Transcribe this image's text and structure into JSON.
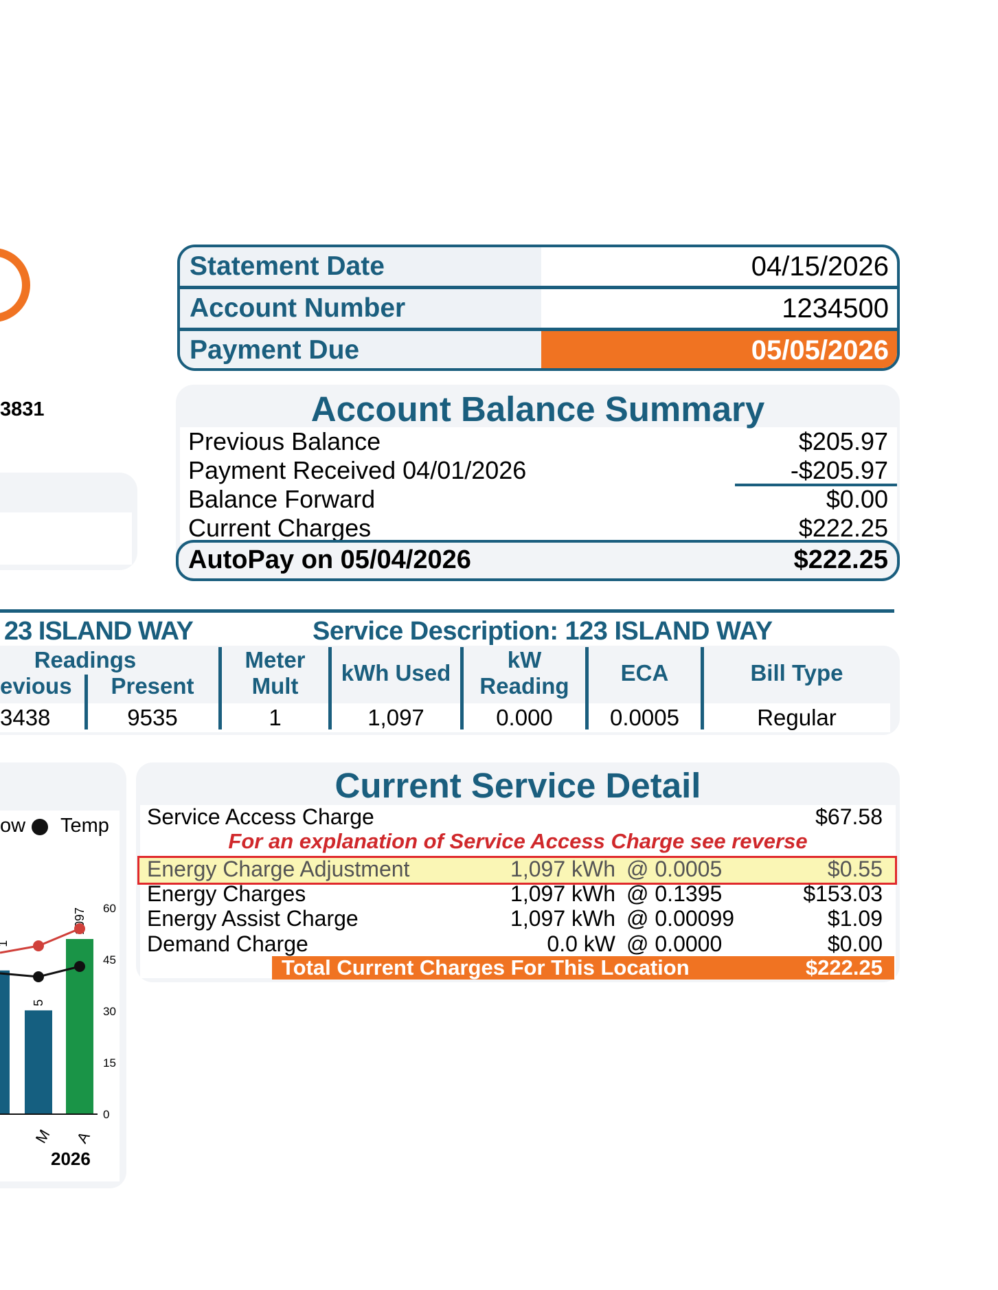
{
  "account": {
    "statement_date_label": "Statement Date",
    "statement_date": "04/15/2026",
    "account_number_label": "Account Number",
    "account_number": "1234500",
    "payment_due_label": "Payment Due",
    "payment_due": "05/05/2026",
    "partial_id": "3831"
  },
  "colors": {
    "teal": "#1a5e7e",
    "orange": "#f07322",
    "green": "#1a9447",
    "red": "#d0403a"
  },
  "balance": {
    "title": "Account Balance Summary",
    "rows": [
      {
        "label": "Previous Balance",
        "value": "$205.97"
      },
      {
        "label": "Payment Received 04/01/2026",
        "value": "-$205.97"
      },
      {
        "label": "Balance Forward",
        "value": "$0.00"
      },
      {
        "label": "Current Charges",
        "value": "$222.25"
      }
    ],
    "autopay_label": "AutoPay on 05/04/2026",
    "autopay_value": "$222.25"
  },
  "service": {
    "left_address": "23 ISLAND WAY",
    "description": "Service Description: 123 ISLAND WAY",
    "headers": {
      "readings": "Readings",
      "previous": "evious",
      "present": "Present",
      "meter_mult_1": "Meter",
      "meter_mult_2": "Mult",
      "kwh_used": "kWh Used",
      "kw_reading_1": "kW",
      "kw_reading_2": "Reading",
      "eca": "ECA",
      "bill_type": "Bill Type"
    },
    "values": {
      "previous": "3438",
      "present": "9535",
      "meter_mult": "1",
      "kwh_used": "1,097",
      "kw_reading": "0.000",
      "eca": "0.0005",
      "bill_type": "Regular"
    }
  },
  "chart": {
    "legend_low": "ow",
    "legend_temp": "Temp",
    "year_label": "2026",
    "bar_label_m": "5",
    "bar_label_a": "1097",
    "bar_label_prev": "1"
  },
  "chart_data": {
    "type": "bar",
    "categories": [
      "M",
      "A"
    ],
    "series": [
      {
        "values": [
          650,
          1097
        ]
      }
    ],
    "lines": [
      {
        "name": "Low",
        "values": [
          49,
          54
        ]
      },
      {
        "name": "Temp",
        "values": [
          40,
          43
        ]
      }
    ],
    "right_axis_ticks": [
      "0",
      "15",
      "30",
      "45",
      "60"
    ],
    "ylim": [
      0,
      60
    ]
  },
  "detail": {
    "title": "Current Service Detail",
    "service_access_label": "Service Access Charge",
    "service_access_value": "$67.58",
    "note": "For an explanation of Service Access Charge see reverse",
    "rows": [
      {
        "label": "Energy Charge Adjustment",
        "qty": "1,097 kWh",
        "rate": "@ 0.0005",
        "value": "$0.55"
      },
      {
        "label": "Energy Charges",
        "qty": "1,097 kWh",
        "rate": "@ 0.1395",
        "value": "$153.03"
      },
      {
        "label": "Energy Assist Charge",
        "qty": "1,097 kWh",
        "rate": "@ 0.00099",
        "value": "$1.09"
      },
      {
        "label": "Demand Charge",
        "qty": "0.0 kW",
        "rate": "@ 0.0000",
        "value": "$0.00"
      }
    ],
    "total_label": "Total Current Charges For This Location",
    "total_value": "$222.25"
  }
}
